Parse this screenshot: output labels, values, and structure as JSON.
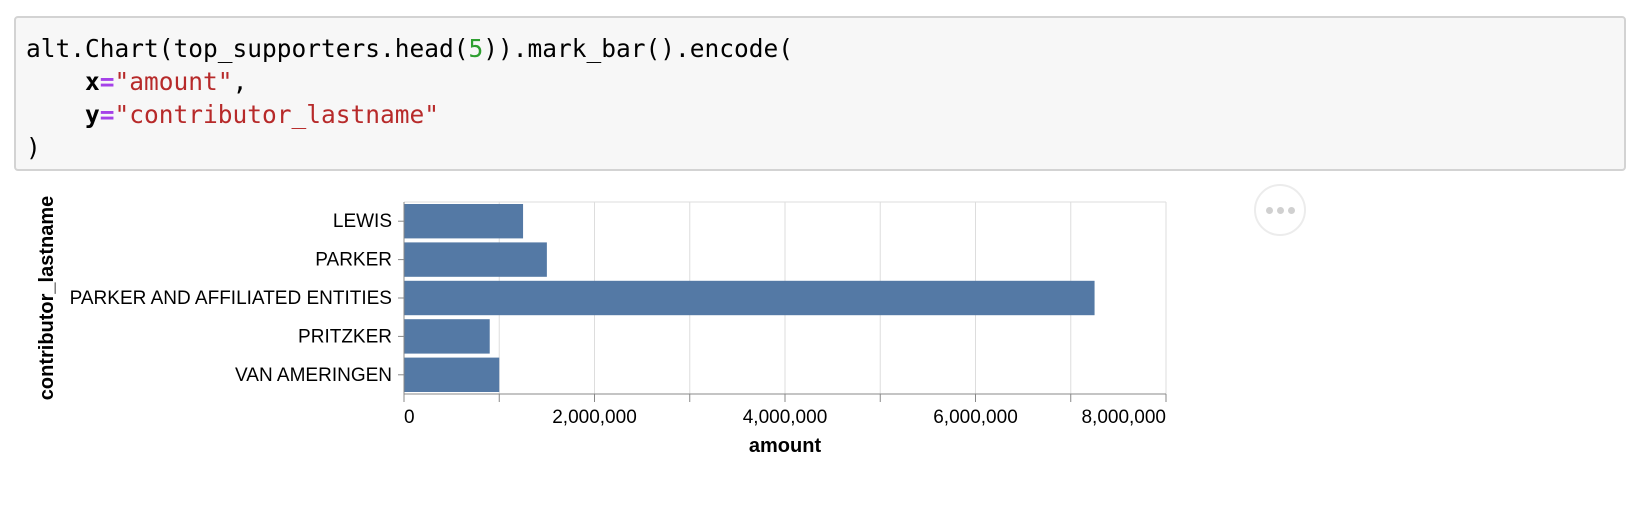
{
  "code_cell": {
    "line1_a": "alt.Chart(top_supporters.head(",
    "line1_num": "5",
    "line1_b": ")).mark_bar().encode(",
    "line2_indent": "    ",
    "line2_key": "x",
    "line2_eq": "=",
    "line2_val": "\"amount\"",
    "line2_end": ",",
    "line3_indent": "    ",
    "line3_key": "y",
    "line3_eq": "=",
    "line3_val": "\"contributor_lastname\"",
    "line4": ")"
  },
  "colors": {
    "bar": "#5479a5",
    "grid": "#dddddd",
    "axis": "#888888",
    "string": "#b72a2a",
    "number": "#2e9f30",
    "operator": "#a542e8",
    "actions_dots": "#d0d0d0"
  },
  "chart_data": {
    "type": "bar",
    "orientation": "horizontal",
    "categories": [
      "LEWIS",
      "PARKER",
      "PARKER AND AFFILIATED ENTITIES",
      "PRITZKER",
      "VAN AMERINGEN"
    ],
    "values": [
      1250000,
      1500000,
      7250000,
      900000,
      1000000
    ],
    "xlabel": "amount",
    "ylabel": "contributor_lastname",
    "xlim": [
      0,
      8000000
    ],
    "xticks": [
      0,
      1000000,
      2000000,
      3000000,
      4000000,
      5000000,
      6000000,
      7000000,
      8000000
    ],
    "xtick_labels": [
      "0",
      "2,000,000",
      "4,000,000",
      "6,000,000",
      "8,000,000"
    ],
    "xtick_label_values": [
      0,
      2000000,
      4000000,
      6000000,
      8000000
    ],
    "grid": true
  },
  "actions_menu": {
    "icon": "ellipsis-icon"
  }
}
